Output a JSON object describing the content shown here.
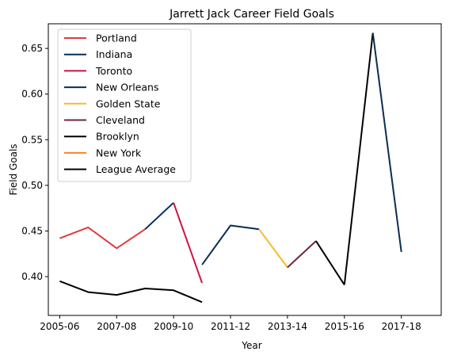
{
  "chart_data": {
    "type": "line",
    "title": "Jarrett Jack Career Field Goals",
    "xlabel": "Year",
    "ylabel": "Field Goals",
    "x_ticks": [
      "2005-06",
      "2007-08",
      "2009-10",
      "2011-12",
      "2013-14",
      "2015-16",
      "2017-18"
    ],
    "y_ticks": [
      "0.40",
      "0.45",
      "0.50",
      "0.55",
      "0.60",
      "0.65"
    ],
    "xlim": [
      2004.6,
      2018.4
    ],
    "ylim": [
      0.3575,
      0.677
    ],
    "grid": false,
    "legend_position": "top-left",
    "series": [
      {
        "name": "Portland",
        "color": "#E03A3E",
        "points": [
          [
            2005,
            0.442
          ],
          [
            2006,
            0.454
          ],
          [
            2007,
            0.431
          ],
          [
            2008,
            0.452
          ]
        ]
      },
      {
        "name": "Indiana",
        "color": "#002D62",
        "points": [
          [
            2008,
            0.452
          ],
          [
            2009,
            0.481
          ]
        ]
      },
      {
        "name": "Toronto",
        "color": "#CE1141",
        "points": [
          [
            2009,
            0.481
          ],
          [
            2010,
            0.393
          ]
        ]
      },
      {
        "name": "New Orleans",
        "color": "#0C2C56",
        "points": [
          [
            2010,
            0.413
          ],
          [
            2011,
            0.456
          ],
          [
            2012,
            0.452
          ]
        ]
      },
      {
        "name": "Golden State",
        "color": "#FDB927",
        "points": [
          [
            2012,
            0.452
          ],
          [
            2013,
            0.41
          ]
        ]
      },
      {
        "name": "Cleveland",
        "color": "#6F263D",
        "points": [
          [
            2013,
            0.41
          ],
          [
            2014,
            0.439
          ]
        ]
      },
      {
        "name": "Brooklyn",
        "color": "#000000",
        "points": [
          [
            2014,
            0.439
          ],
          [
            2015,
            0.391
          ]
        ]
      },
      {
        "name": "New York",
        "color": "#F58426",
        "points": []
      },
      {
        "name": "League Average",
        "color": "#000000",
        "points": [
          [
            2005,
            0.395
          ],
          [
            2006,
            0.383
          ],
          [
            2007,
            0.38
          ],
          [
            2008,
            0.387
          ],
          [
            2009,
            0.385
          ],
          [
            2010,
            0.372
          ]
        ]
      },
      {
        "name": "",
        "color": "#000000",
        "legend": false,
        "points": [
          [
            2015,
            0.391
          ],
          [
            2016,
            0.667
          ]
        ]
      },
      {
        "name": "",
        "color": "#0C2C56",
        "legend": false,
        "points": [
          [
            2016,
            0.667
          ],
          [
            2017,
            0.427
          ]
        ]
      }
    ]
  }
}
